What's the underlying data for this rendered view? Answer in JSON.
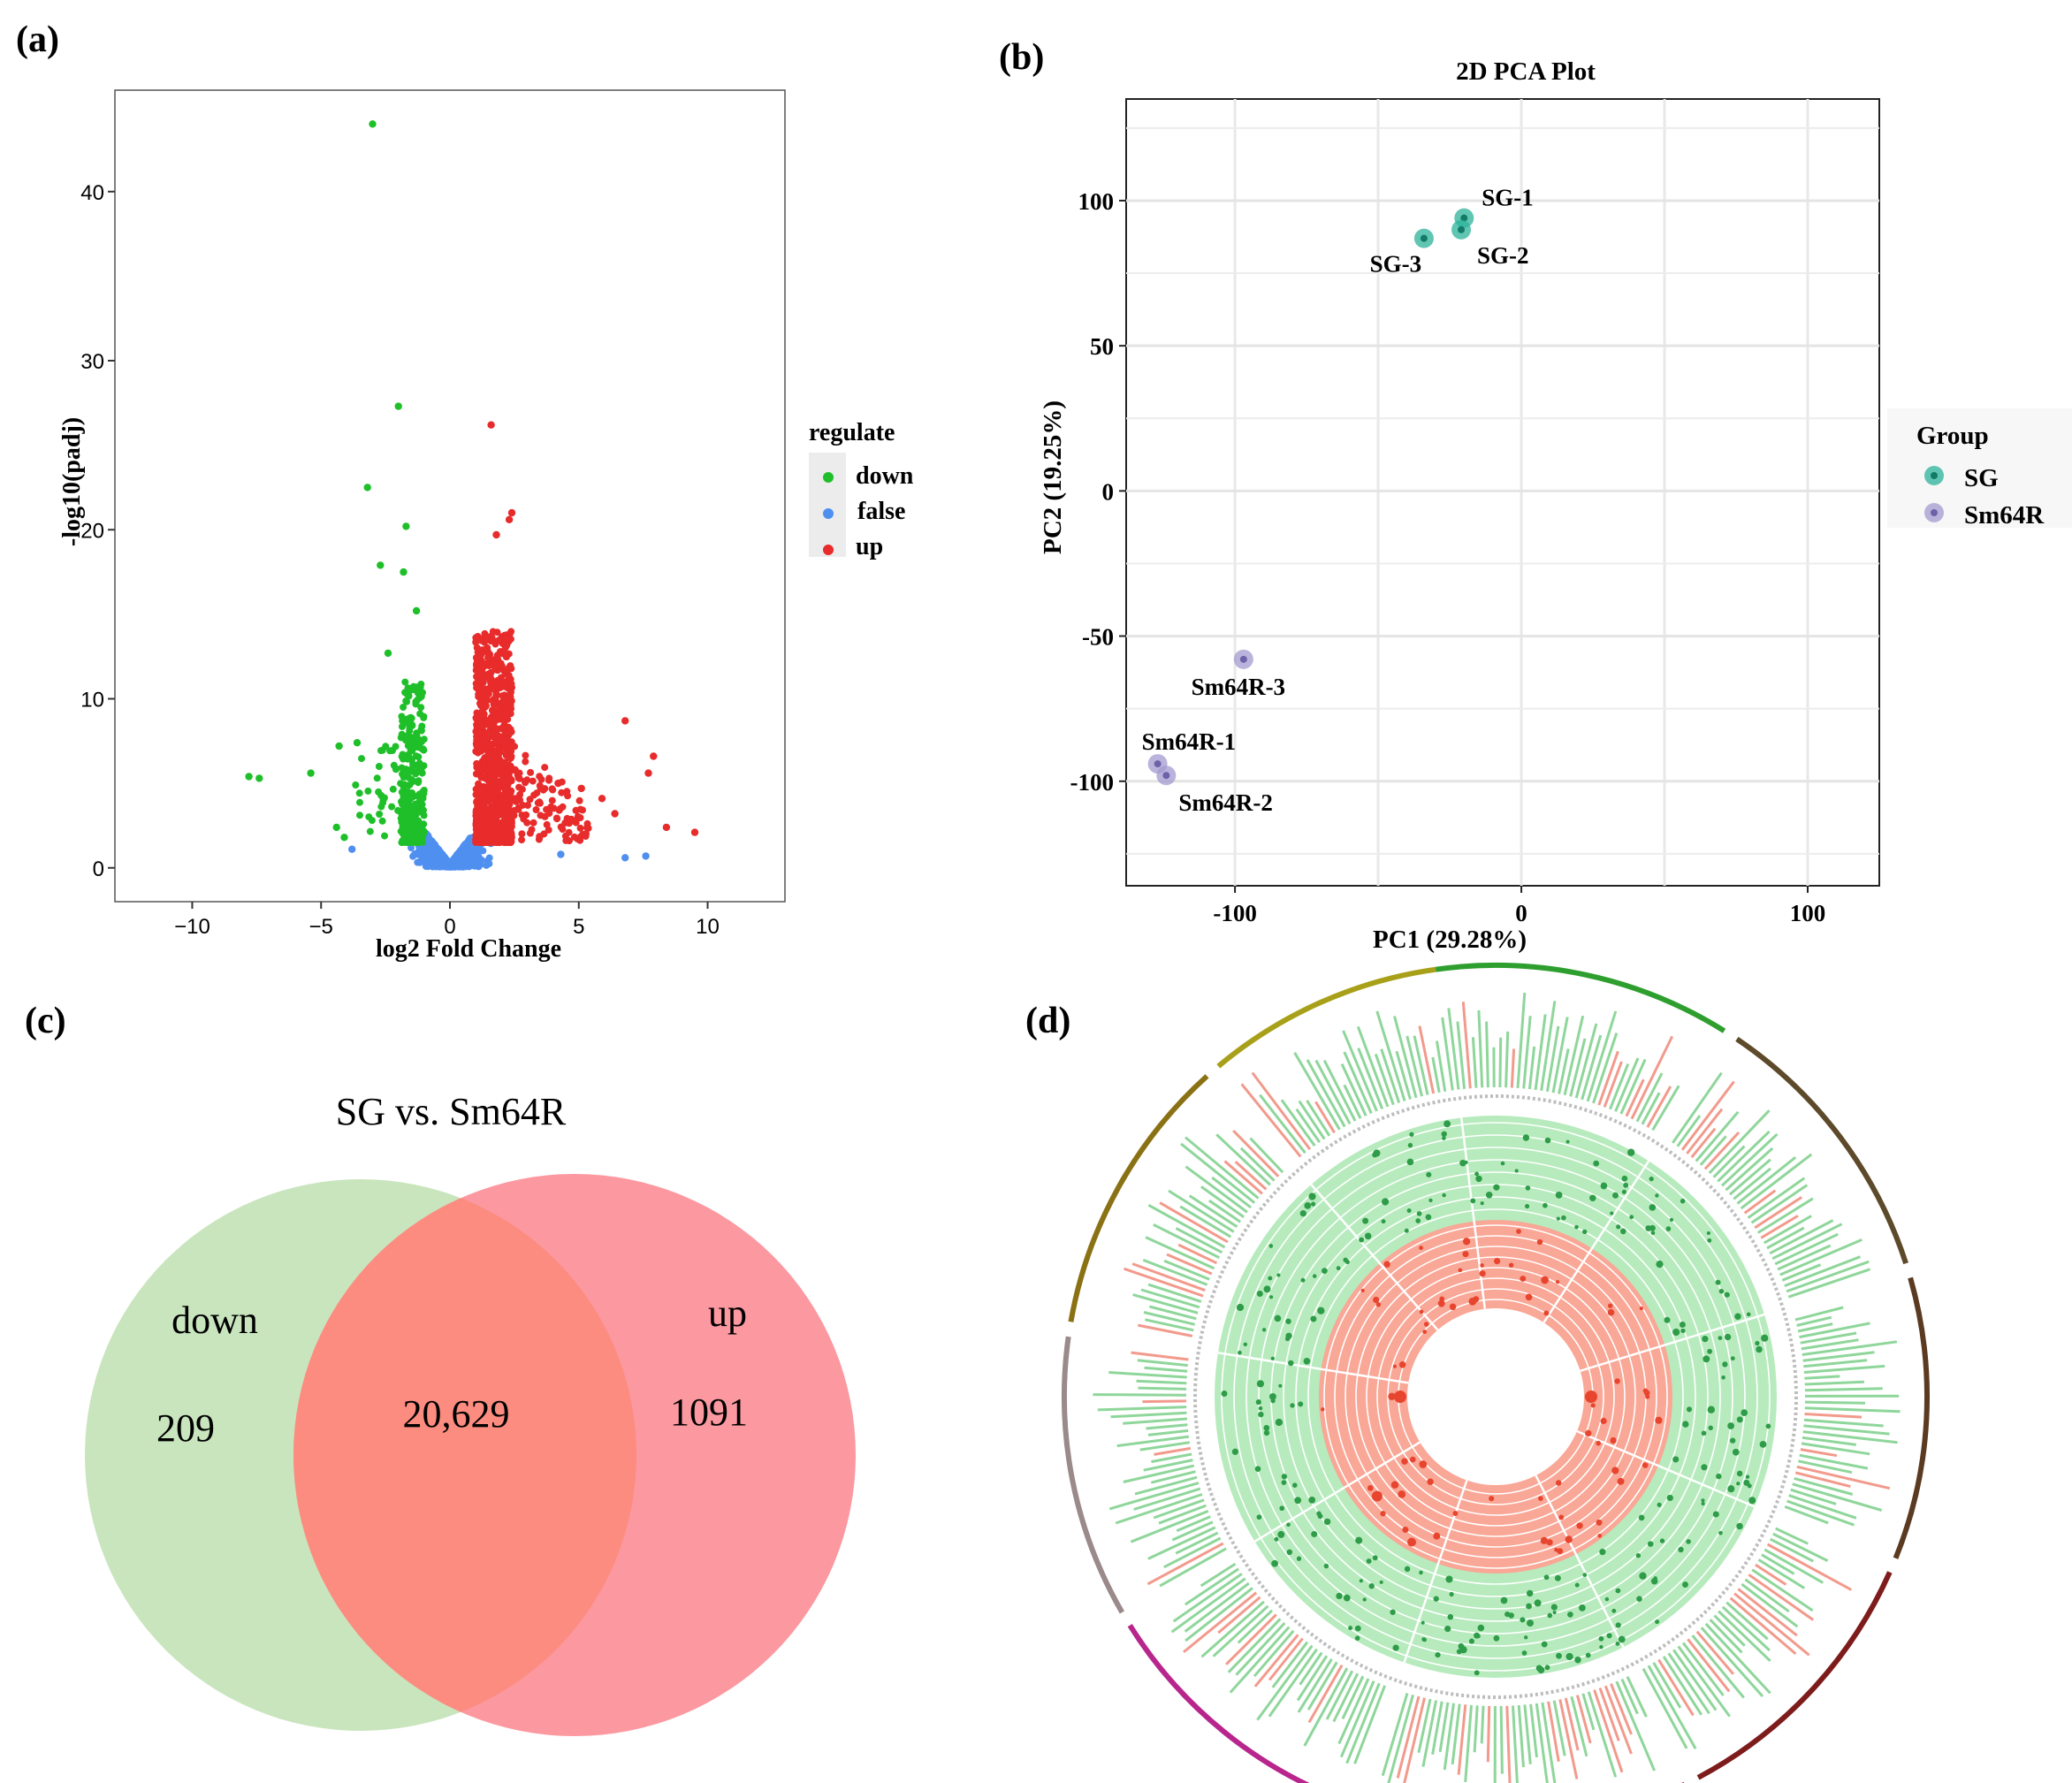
{
  "panels": {
    "a": "(a)",
    "b": "(b)",
    "c": "(c)",
    "d": "(d)"
  },
  "colors": {
    "down": "#1fbf2a",
    "false": "#4f8ff0",
    "up": "#e82b2b",
    "pca_sg": "#2bb39a",
    "pca_sm": "#a39ad0",
    "venn_left": "#c9e5bd",
    "venn_right": "#fc98a0",
    "venn_overlap": "#fc8c80",
    "circos_green": "#a8e6b0",
    "circos_red": "#f9a796"
  },
  "chart_data": [
    {
      "id": "volcano",
      "type": "scatter",
      "title": "",
      "xlabel": "log2 Fold Change",
      "ylabel": "-log10(padj)",
      "xlim": [
        -13,
        13
      ],
      "ylim": [
        -2,
        46
      ],
      "xticks": [
        -10,
        -5,
        0,
        5,
        10
      ],
      "xtick_labels": [
        "−10",
        "−5",
        "0",
        "5",
        "10"
      ],
      "yticks": [
        0,
        10,
        20,
        30,
        40
      ],
      "legend": {
        "title": "regulate",
        "entries": [
          "down",
          "false",
          "up"
        ],
        "position": "right"
      },
      "highlight_points": {
        "down": [
          [
            -3,
            44
          ],
          [
            -2,
            27.3
          ],
          [
            -3.2,
            22.5
          ],
          [
            -1.7,
            20.2
          ],
          [
            -2.7,
            17.9
          ],
          [
            -1.8,
            17.5
          ],
          [
            -1.3,
            15.2
          ],
          [
            -2.4,
            12.7
          ],
          [
            -7.8,
            5.4
          ],
          [
            -7.4,
            5.3
          ],
          [
            -5.4,
            5.6
          ],
          [
            -4.3,
            7.2
          ],
          [
            -3.6,
            7.4
          ],
          [
            -4.4,
            2.4
          ],
          [
            -4.1,
            1.8
          ]
        ],
        "up": [
          [
            1.6,
            26.2
          ],
          [
            2.4,
            21
          ],
          [
            2.3,
            20.6
          ],
          [
            1.8,
            19.7
          ],
          [
            6.8,
            8.7
          ],
          [
            7.9,
            6.6
          ],
          [
            7.7,
            5.6
          ],
          [
            8.4,
            2.4
          ],
          [
            9.5,
            2.1
          ],
          [
            6.4,
            3.2
          ],
          [
            5.9,
            4.1
          ],
          [
            5.1,
            4.7
          ],
          [
            4.2,
            5.0
          ]
        ],
        "false": [
          [
            6.8,
            0.6
          ],
          [
            7.6,
            0.7
          ],
          [
            4.3,
            0.8
          ],
          [
            -3.8,
            1.1
          ]
        ]
      },
      "clusters": {
        "down_band": {
          "x": [
            -1.9,
            -1.0
          ],
          "y": [
            1.5,
            11
          ]
        },
        "up_band": {
          "x": [
            1.0,
            2.4
          ],
          "y": [
            1.5,
            14
          ]
        },
        "false_band": {
          "x": [
            -4.5,
            4.5
          ],
          "y": [
            0,
            3
          ]
        }
      }
    },
    {
      "id": "pca",
      "type": "scatter",
      "title": "2D PCA Plot",
      "xlabel": "PC1 (29.28%)",
      "ylabel": "PC2 (19.25%)",
      "xlim": [
        -138,
        125
      ],
      "ylim": [
        -136,
        135
      ],
      "xticks": [
        -100,
        0,
        100
      ],
      "yticks": [
        100,
        50,
        0,
        -50,
        -100
      ],
      "legend": {
        "title": "Group",
        "entries": [
          "SG",
          "Sm64R"
        ],
        "position": "right"
      },
      "series": [
        {
          "name": "SG",
          "points": [
            {
              "label": "SG-1",
              "x": -20,
              "y": 94
            },
            {
              "label": "SG-2",
              "x": -21,
              "y": 90
            },
            {
              "label": "SG-3",
              "x": -34,
              "y": 87
            }
          ]
        },
        {
          "name": "Sm64R",
          "points": [
            {
              "label": "Sm64R-3",
              "x": -97,
              "y": -58
            },
            {
              "label": "Sm64R-1",
              "x": -127,
              "y": -94
            },
            {
              "label": "Sm64R-2",
              "x": -124,
              "y": -98
            }
          ]
        }
      ]
    },
    {
      "id": "venn",
      "type": "venn",
      "title": "SG vs. Sm64R",
      "sets": [
        {
          "name": "down",
          "only": "209"
        },
        {
          "name": "up",
          "only": "1091"
        }
      ],
      "overlap": "20,629"
    },
    {
      "id": "circos",
      "type": "circos",
      "tracks": [
        "chromosome ideogram",
        "gene heat bars",
        "green scatter rings",
        "red scatter rings"
      ]
    }
  ]
}
